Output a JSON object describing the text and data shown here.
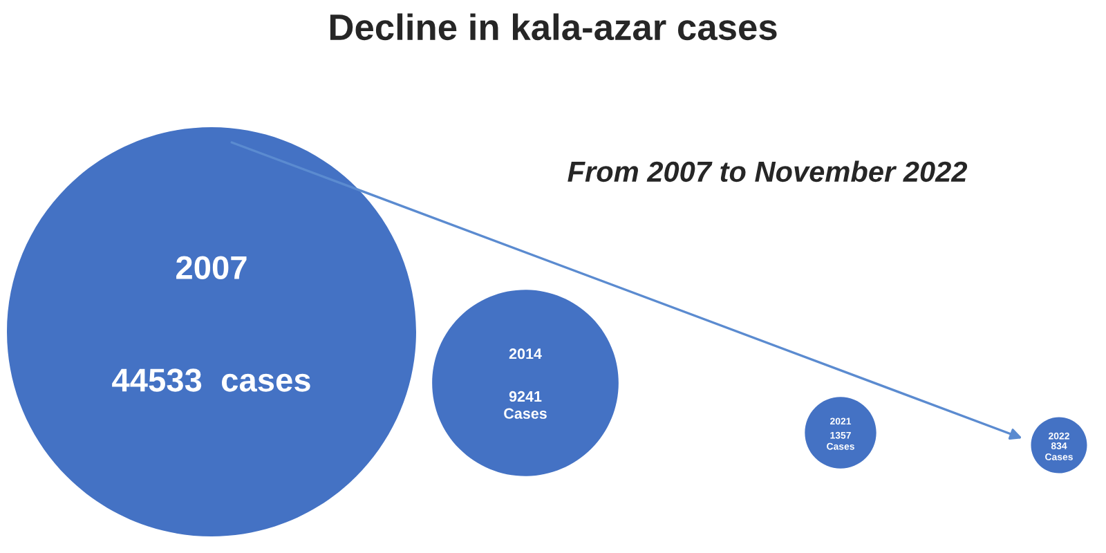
{
  "chart_data": {
    "type": "other",
    "title": "Decline in kala-azar cases",
    "annotations": [
      "From 2007 to November 2022"
    ],
    "categories": [
      "2007",
      "2014",
      "2021",
      "2022"
    ],
    "values": [
      44533,
      9241,
      1357,
      834
    ],
    "value_labels": [
      "44533  cases",
      "9241\nCases",
      "1357\nCases",
      "834\nCases"
    ],
    "color": "#4472c4"
  }
}
